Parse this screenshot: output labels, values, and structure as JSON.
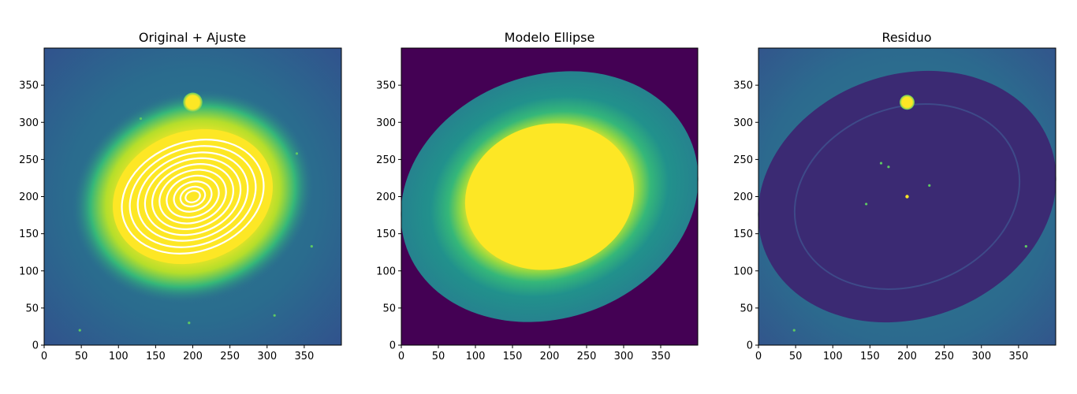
{
  "chart_data": [
    {
      "type": "heatmap",
      "title": "Original + Ajuste",
      "xlim": [
        0,
        400
      ],
      "ylim": [
        0,
        400
      ],
      "xticks": [
        0,
        50,
        100,
        150,
        200,
        250,
        300,
        350
      ],
      "yticks": [
        0,
        50,
        100,
        150,
        200,
        250,
        300,
        350
      ],
      "colormap": "viridis",
      "background_color": "#2f6f8e",
      "core_color": "#fde725",
      "galaxy_center": [
        200,
        200
      ],
      "companion_star": [
        200,
        327
      ],
      "isophotes": {
        "color": "#ffffff",
        "center": [
          200,
          200
        ],
        "position_angle_deg": -20,
        "axis_ratio": 0.75,
        "semi_major_axes": [
          10,
          17,
          26,
          36,
          46,
          56,
          66,
          76,
          87,
          98
        ]
      }
    },
    {
      "type": "heatmap",
      "title": "Modelo Ellipse",
      "xlim": [
        0,
        400
      ],
      "ylim": [
        0,
        400
      ],
      "xticks": [
        0,
        50,
        100,
        150,
        200,
        250,
        300,
        350
      ],
      "yticks": [
        0,
        50,
        100,
        150,
        200,
        250,
        300,
        350
      ],
      "colormap": "viridis",
      "background_color": "#440154",
      "outer_ring_color": "#21918c",
      "core_color": "#fde725",
      "model_center": [
        200,
        200
      ],
      "outer_extent_semi_major": 205,
      "core_semi_major": 115
    },
    {
      "type": "heatmap",
      "title": "Residuo",
      "xlim": [
        0,
        400
      ],
      "ylim": [
        0,
        400
      ],
      "xticks": [
        0,
        50,
        100,
        150,
        200,
        250,
        300,
        350
      ],
      "yticks": [
        0,
        50,
        100,
        150,
        200,
        250,
        300,
        350
      ],
      "colormap": "viridis",
      "background_color": "#2f6f8e",
      "residual_color": "#3b2a73",
      "companion_star": [
        200,
        327
      ],
      "center_point": [
        200,
        200
      ]
    }
  ]
}
